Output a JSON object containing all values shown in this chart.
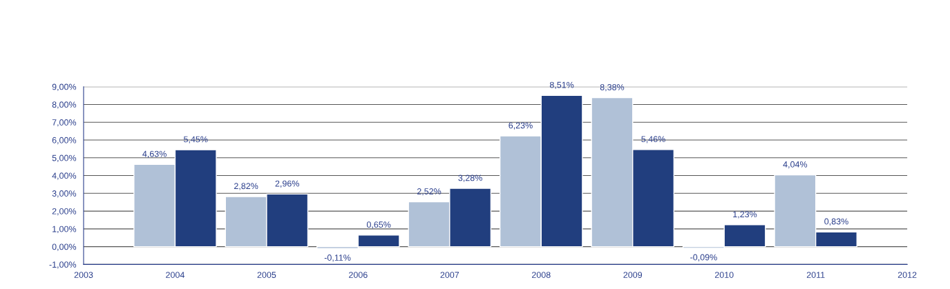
{
  "chart_data": {
    "type": "bar",
    "x": [
      2004,
      2005,
      2006,
      2007,
      2008,
      2009,
      2010,
      2011
    ],
    "series": [
      {
        "color": "#b0c1d7",
        "values": [
          4.63,
          2.82,
          -0.11,
          2.52,
          6.23,
          8.38,
          -0.09,
          4.04
        ],
        "value_labels": [
          "4,63%",
          "2,82%",
          "-0,11%",
          "2,52%",
          "6,23%",
          "8,38%",
          "-0,09%",
          "4,04%"
        ]
      },
      {
        "color": "#213e7e",
        "values": [
          5.45,
          2.96,
          0.65,
          3.28,
          8.51,
          5.46,
          1.23,
          0.83
        ],
        "value_labels": [
          "5,45%",
          "2,96%",
          "0,65%",
          "3,28%",
          "8,51%",
          "5,46%",
          "1,23%",
          "0,83%"
        ]
      }
    ],
    "xlim": [
      2003,
      2012
    ],
    "xticks": [
      2003,
      2004,
      2005,
      2006,
      2007,
      2008,
      2009,
      2010,
      2011,
      2012
    ],
    "ylim": [
      -1,
      9
    ],
    "yticks": [
      {
        "value": -1,
        "label": "-1,00%"
      },
      {
        "value": 0,
        "label": "0,00%"
      },
      {
        "value": 1,
        "label": "1,00%"
      },
      {
        "value": 2,
        "label": "2,00%"
      },
      {
        "value": 3,
        "label": "3,00%"
      },
      {
        "value": 4,
        "label": "4,00%"
      },
      {
        "value": 5,
        "label": "5,00%"
      },
      {
        "value": 6,
        "label": "6,00%"
      },
      {
        "value": 7,
        "label": "7,00%"
      },
      {
        "value": 8,
        "label": "8,00%"
      },
      {
        "value": 9,
        "label": "9,00%"
      }
    ],
    "grid": "y"
  }
}
